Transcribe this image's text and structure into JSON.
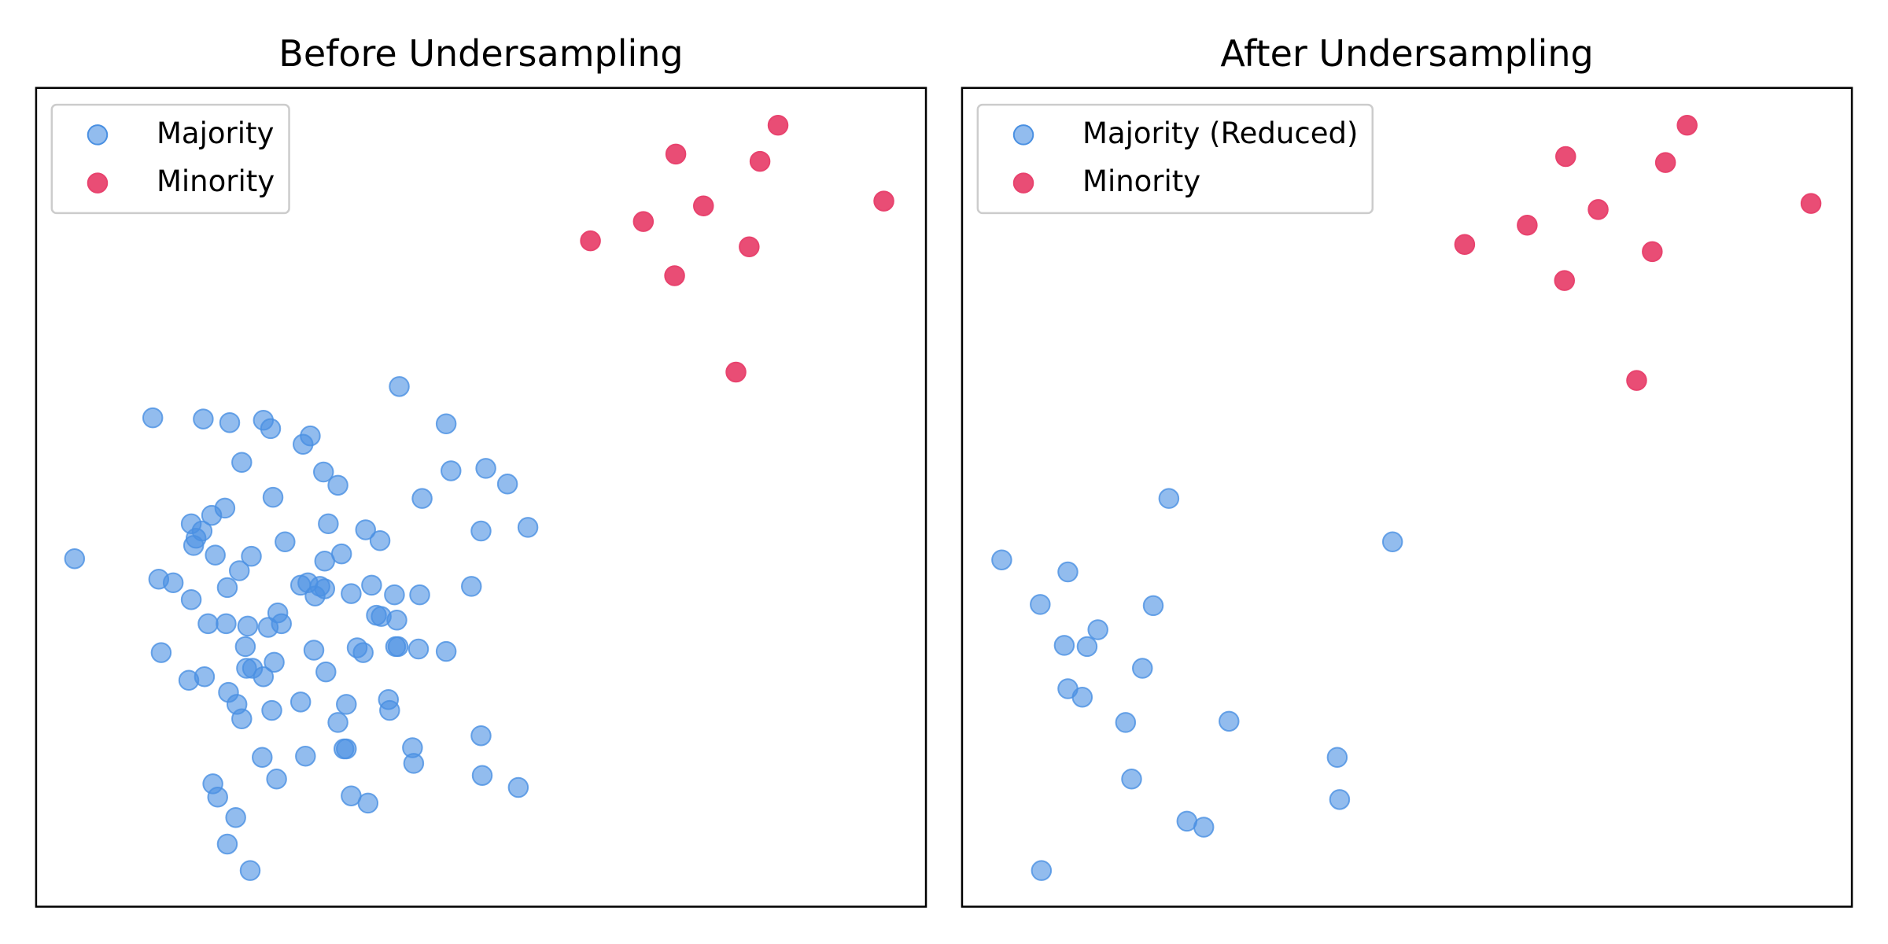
{
  "chart_data": [
    {
      "type": "scatter",
      "title": "Before Undersampling",
      "xlim": [
        0,
        740
      ],
      "ylim": [
        0,
        680
      ],
      "legend": "upper left",
      "series": [
        {
          "name": "Majority",
          "color": "#4a90e2",
          "opacity": 0.6,
          "x": [
            97,
            139,
            161,
            189,
            195,
            228,
            222,
            302,
            341,
            171,
            239,
            251,
            345,
            374,
            392,
            197,
            321,
            157,
            146,
            129,
            138,
            133,
            131,
            32,
            149,
            179,
            207,
            243,
            274,
            286,
            254,
            240,
            370,
            409,
            169,
            102,
            114,
            159,
            129,
            220,
            226,
            236,
            240,
            232,
            262,
            279,
            298,
            319,
            362,
            201,
            204,
            193,
            176,
            158,
            143,
            283,
            287,
            300,
            267,
            272,
            299,
            301,
            318,
            341,
            231,
            174,
            104,
            140,
            127,
            175,
            180,
            189,
            198,
            241,
            160,
            167,
            171,
            196,
            220,
            258,
            293,
            294,
            251,
            370,
            313,
            256,
            258,
            314,
            188,
            224,
            200,
            371,
            401,
            147,
            151,
            262,
            276,
            166,
            159,
            178
          ],
          "values": [
            406,
            405,
            402,
            404,
            397,
            391,
            384,
            432,
            401,
            369,
            361,
            350,
            362,
            364,
            351,
            340,
            339,
            331,
            325,
            318,
            312,
            306,
            300,
            289,
            292,
            291,
            303,
            318,
            313,
            304,
            293,
            287,
            312,
            315,
            279,
            272,
            269,
            265,
            255,
            267,
            269,
            266,
            264,
            258,
            260,
            267,
            259,
            259,
            266,
            244,
            235,
            232,
            233,
            235,
            235,
            242,
            241,
            238,
            215,
            211,
            216,
            216,
            214,
            212,
            213,
            216,
            211,
            191,
            188,
            198,
            198,
            191,
            203,
            195,
            178,
            168,
            156,
            163,
            170,
            168,
            172,
            163,
            153,
            142,
            132,
            131,
            131,
            119,
            124,
            125,
            106,
            109,
            99,
            102,
            91,
            92,
            86,
            74,
            52,
            30
          ]
        },
        {
          "name": "Minority",
          "color": "#e8436e",
          "opacity": 0.95,
          "x": [
            617,
            532,
            602,
            555,
            505,
            461,
            593,
            705,
            531,
            582
          ],
          "values": [
            649,
            625,
            619,
            582,
            569,
            553,
            548,
            586,
            524,
            444
          ]
        }
      ]
    },
    {
      "type": "scatter",
      "title": "After Undersampling",
      "xlim": [
        0,
        740
      ],
      "ylim": [
        0,
        680
      ],
      "legend": "upper left",
      "series": [
        {
          "name": "Majority (Reduced)",
          "color": "#4a90e2",
          "opacity": 0.6,
          "x": [
            172,
            33,
            88,
            358,
            65,
            159,
            113,
            85,
            104,
            150,
            88,
            100,
            136,
            222,
            312,
            141,
            314,
            187,
            201,
            66
          ],
          "values": [
            339,
            288,
            278,
            303,
            251,
            250,
            230,
            217,
            216,
            198,
            181,
            174,
            153,
            154,
            124,
            106,
            89,
            71,
            66,
            30
          ]
        },
        {
          "name": "Minority",
          "color": "#e8436e",
          "opacity": 0.95,
          "x": [
            603,
            502,
            585,
            529,
            470,
            418,
            574,
            706,
            501,
            561
          ],
          "values": [
            649,
            623,
            618,
            579,
            566,
            550,
            544,
            584,
            520,
            437
          ]
        }
      ]
    }
  ]
}
